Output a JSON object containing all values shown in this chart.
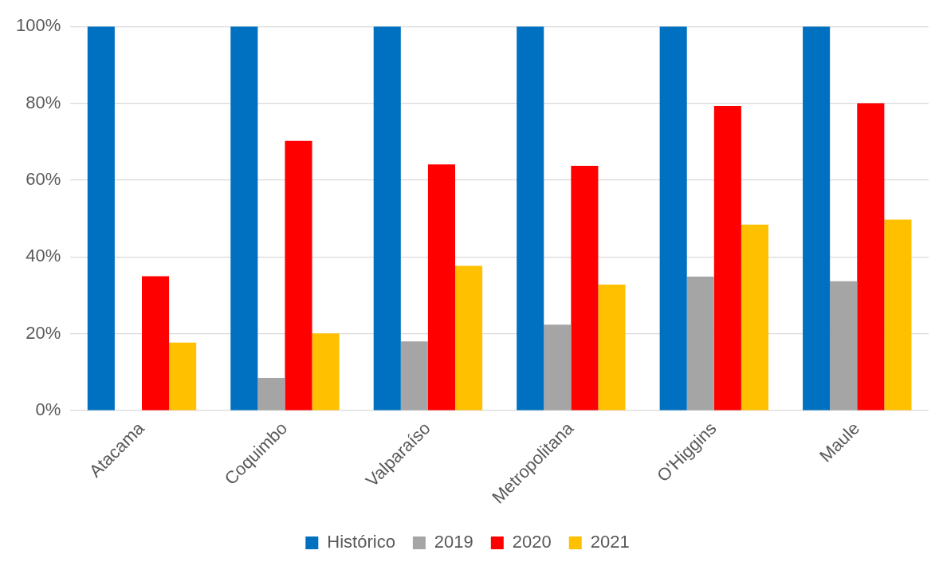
{
  "chart_data": {
    "type": "bar",
    "categories": [
      "Atacama",
      "Coquimbo",
      "Valparaíso",
      "Metropolitana",
      "O'Higgins",
      "Maule"
    ],
    "series": [
      {
        "name": "Histórico",
        "color": "#0070c0",
        "values": [
          100,
          100,
          100,
          100,
          100,
          100
        ]
      },
      {
        "name": "2019",
        "color": "#a5a5a5",
        "values": [
          0,
          8.5,
          18,
          22.4,
          34.9,
          33.7
        ]
      },
      {
        "name": "2020",
        "color": "#ff0000",
        "values": [
          35,
          70.2,
          64.1,
          63.7,
          79.3,
          80
        ]
      },
      {
        "name": "2021",
        "color": "#ffc000",
        "values": [
          17.7,
          20.1,
          37.7,
          32.8,
          48.4,
          49.7
        ]
      }
    ],
    "ylim": [
      0,
      100
    ],
    "yticks": [
      {
        "value": 0,
        "label": "0%"
      },
      {
        "value": 20,
        "label": "20%"
      },
      {
        "value": 40,
        "label": "40%"
      },
      {
        "value": 60,
        "label": "60%"
      },
      {
        "value": 80,
        "label": "80%"
      },
      {
        "value": 100,
        "label": "100%"
      }
    ],
    "grid": "y",
    "legend": "bottom"
  }
}
